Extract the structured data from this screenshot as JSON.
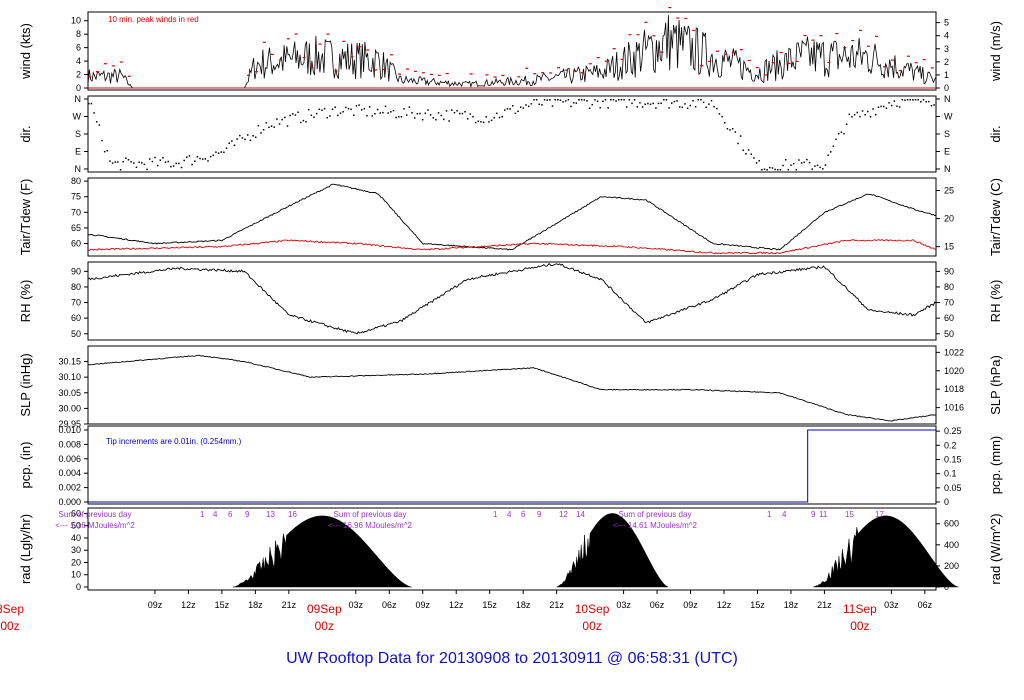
{
  "title": "UW Rooftop Data for 20130908  to  20130911 @ 06:58:31  (UTC)",
  "colors": {
    "axis": "#000000",
    "red": "#dd0000",
    "blue": "#0000cc",
    "purple": "#9933cc",
    "title": "#1010cc"
  },
  "chart_data": [
    {
      "id": "wind",
      "type": "line",
      "ylabel_left": "wind (kts)",
      "ylabel_right": "wind (m/s)",
      "left_ticks": [
        0,
        2,
        4,
        6,
        8,
        10
      ],
      "right_ticks": [
        0,
        1,
        2,
        3,
        4,
        5
      ],
      "annotation": "10 min. peak winds in red",
      "series": [
        {
          "name": "",
          "color": "#000000"
        },
        {
          "name": "10 min. peak winds",
          "color": "#dd0000"
        }
      ]
    },
    {
      "id": "dir",
      "type": "scatter",
      "ylabel_left": "dir.",
      "ylabel_right": "dir.",
      "left_ticks": [
        "N",
        "E",
        "S",
        "W",
        "N"
      ],
      "right_ticks": [
        "N",
        "E",
        "S",
        "W",
        "N"
      ]
    },
    {
      "id": "temp",
      "type": "line",
      "ylabel_left": "Tair/Tdew (F)",
      "ylabel_right": "Tair/Tdew (C)",
      "left_ticks": [
        60,
        65,
        70,
        75,
        80
      ],
      "right_ticks": [
        15,
        20,
        25
      ],
      "series": [
        {
          "name": "Tair",
          "color": "#000000"
        },
        {
          "name": "Tdew",
          "color": "#dd0000"
        }
      ]
    },
    {
      "id": "rh",
      "type": "line",
      "ylabel_left": "RH (%)",
      "ylabel_right": "RH (%)",
      "left_ticks": [
        50,
        60,
        70,
        80,
        90
      ],
      "right_ticks": [
        50,
        60,
        70,
        80,
        90
      ]
    },
    {
      "id": "slp",
      "type": "line",
      "ylabel_left": "SLP (inHg)",
      "ylabel_right": "SLP (hPa)",
      "left_ticks": [
        "29.95",
        "30.00",
        "30.05",
        "30.10",
        "30.15"
      ],
      "right_ticks": [
        1016,
        1018,
        1020,
        1022
      ]
    },
    {
      "id": "pcp",
      "type": "line",
      "ylabel_left": "pcp. (in)",
      "ylabel_right": "pcp. (mm)",
      "left_ticks": [
        "0.000",
        "0.002",
        "0.004",
        "0.006",
        "0.008",
        "0.010"
      ],
      "right_ticks": [
        "0",
        "0.05",
        "0.1",
        "0.15",
        "0.2",
        "0.25"
      ],
      "annotation": "Tip increments are 0.01in. (0.254mm.)"
    },
    {
      "id": "rad",
      "type": "area",
      "ylabel_left": "rad (Lgly/hr)",
      "ylabel_right": "rad (W/m^2)",
      "left_ticks": [
        0,
        10,
        20,
        30,
        40,
        50,
        60
      ],
      "right_ticks": [
        0,
        200,
        400,
        600
      ],
      "sums": [
        {
          "l1": "Sum of previous day",
          "l2": "<--- 1.16 MJoules/m^2",
          "hours": [
            "1",
            "4",
            "6",
            "9",
            "13",
            "16"
          ]
        },
        {
          "l1": "Sum of previous day",
          "l2": "<--- 16.96 MJoules/m^2",
          "hours": [
            "1",
            "4",
            "6",
            "9",
            "12",
            "14"
          ]
        },
        {
          "l1": "Sum of previous day",
          "l2": "<--- 14.61 MJoules/m^2",
          "hours": [
            "1",
            "4",
            "9",
            "11",
            "15",
            "17"
          ]
        }
      ]
    }
  ],
  "x_axis": {
    "hour_labels": [
      "09z",
      "12z",
      "15z",
      "18z",
      "21z",
      "03z",
      "06z",
      "09z",
      "12z",
      "15z",
      "18z",
      "21z",
      "03z",
      "06z",
      "09z",
      "12z",
      "15z",
      "18z",
      "21z",
      "03z",
      "06z"
    ],
    "days": [
      {
        "l1": "8Sep",
        "l2": "00z"
      },
      {
        "l1": "09Sep",
        "l2": "00z"
      },
      {
        "l1": "10Sep",
        "l2": "00z"
      },
      {
        "l1": "11Sep",
        "l2": "00z"
      }
    ]
  }
}
